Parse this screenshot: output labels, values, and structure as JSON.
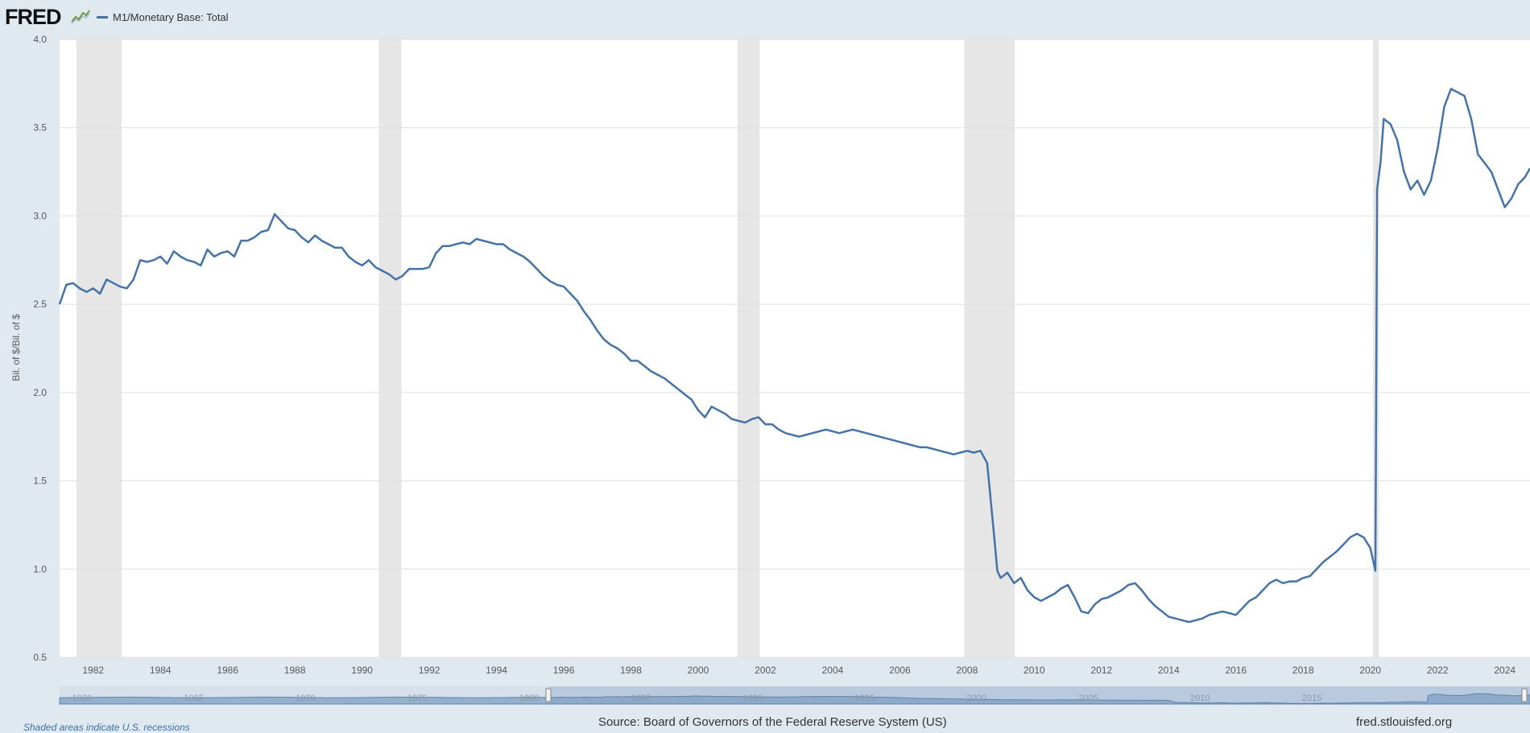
{
  "header": {
    "logo": "FRED",
    "legend_label": "M1/Monetary Base: Total"
  },
  "footer": {
    "source": "Source: Board of Governors of the Federal Reserve System (US)",
    "site": "fred.stlouisfed.org",
    "recession_note": "Shaded areas indicate U.S. recessions"
  },
  "colors": {
    "line": "#4572a7",
    "recession": "#e6e6e6",
    "plot_bg": "#ffffff",
    "page_bg": "#e1e9f0"
  },
  "chart_data": {
    "type": "line",
    "title": "",
    "xlabel": "",
    "ylabel": "Bil. of $/Bil. of $",
    "xlim": [
      1981.0,
      2024.75
    ],
    "ylim": [
      0.5,
      4.0
    ],
    "y_ticks": [
      "0.5",
      "1.0",
      "1.5",
      "2.0",
      "2.5",
      "3.0",
      "3.5",
      "4.0"
    ],
    "x_ticks": [
      "1982",
      "1984",
      "1986",
      "1988",
      "1990",
      "1992",
      "1994",
      "1996",
      "1998",
      "2000",
      "2002",
      "2004",
      "2006",
      "2008",
      "2010",
      "2012",
      "2014",
      "2016",
      "2018",
      "2020",
      "2022",
      "2024"
    ],
    "grid": "horizontal",
    "legend": "top-left",
    "recessions": [
      [
        1981.5,
        1982.85
      ],
      [
        1990.5,
        1991.17
      ],
      [
        2001.17,
        2001.83
      ],
      [
        2007.92,
        2009.42
      ],
      [
        2020.08,
        2020.25
      ]
    ],
    "navigator_labels": [
      "1960",
      "1965",
      "1970",
      "1975",
      "1980",
      "1985",
      "1990",
      "1995",
      "2000",
      "2005",
      "2010",
      "2015"
    ],
    "series": [
      {
        "name": "M1/Monetary Base: Total",
        "x": [
          1981.0,
          1981.2,
          1981.4,
          1981.6,
          1981.8,
          1982.0,
          1982.2,
          1982.4,
          1982.6,
          1982.8,
          1983.0,
          1983.2,
          1983.4,
          1983.6,
          1983.8,
          1984.0,
          1984.2,
          1984.4,
          1984.6,
          1984.8,
          1985.0,
          1985.2,
          1985.4,
          1985.6,
          1985.8,
          1986.0,
          1986.2,
          1986.4,
          1986.6,
          1986.8,
          1987.0,
          1987.2,
          1987.4,
          1987.6,
          1987.8,
          1988.0,
          1988.2,
          1988.4,
          1988.6,
          1988.8,
          1989.0,
          1989.2,
          1989.4,
          1989.6,
          1989.8,
          1990.0,
          1990.2,
          1990.4,
          1990.6,
          1990.8,
          1991.0,
          1991.2,
          1991.4,
          1991.6,
          1991.8,
          1992.0,
          1992.2,
          1992.4,
          1992.6,
          1992.8,
          1993.0,
          1993.2,
          1993.4,
          1993.6,
          1993.8,
          1994.0,
          1994.2,
          1994.4,
          1994.6,
          1994.8,
          1995.0,
          1995.2,
          1995.4,
          1995.6,
          1995.8,
          1996.0,
          1996.2,
          1996.4,
          1996.6,
          1996.8,
          1997.0,
          1997.2,
          1997.4,
          1997.6,
          1997.8,
          1998.0,
          1998.2,
          1998.4,
          1998.6,
          1998.8,
          1999.0,
          1999.2,
          1999.4,
          1999.6,
          1999.8,
          2000.0,
          2000.2,
          2000.4,
          2000.6,
          2000.8,
          2001.0,
          2001.2,
          2001.4,
          2001.6,
          2001.8,
          2002.0,
          2002.2,
          2002.4,
          2002.6,
          2002.8,
          2003.0,
          2003.2,
          2003.4,
          2003.6,
          2003.8,
          2004.0,
          2004.2,
          2004.4,
          2004.6,
          2004.8,
          2005.0,
          2005.2,
          2005.4,
          2005.6,
          2005.8,
          2006.0,
          2006.2,
          2006.4,
          2006.6,
          2006.8,
          2007.0,
          2007.2,
          2007.4,
          2007.6,
          2007.8,
          2008.0,
          2008.2,
          2008.4,
          2008.6,
          2008.8,
          2008.9,
          2009.0,
          2009.2,
          2009.4,
          2009.6,
          2009.8,
          2010.0,
          2010.2,
          2010.4,
          2010.6,
          2010.8,
          2011.0,
          2011.2,
          2011.4,
          2011.6,
          2011.8,
          2012.0,
          2012.2,
          2012.4,
          2012.6,
          2012.8,
          2013.0,
          2013.2,
          2013.4,
          2013.6,
          2013.8,
          2014.0,
          2014.2,
          2014.4,
          2014.6,
          2014.8,
          2015.0,
          2015.2,
          2015.4,
          2015.6,
          2015.8,
          2016.0,
          2016.2,
          2016.4,
          2016.6,
          2016.8,
          2017.0,
          2017.2,
          2017.4,
          2017.6,
          2017.8,
          2018.0,
          2018.2,
          2018.4,
          2018.6,
          2018.8,
          2019.0,
          2019.2,
          2019.4,
          2019.6,
          2019.8,
          2020.0,
          2020.15,
          2020.2,
          2020.3,
          2020.4,
          2020.6,
          2020.8,
          2021.0,
          2021.2,
          2021.4,
          2021.6,
          2021.8,
          2022.0,
          2022.2,
          2022.4,
          2022.6,
          2022.8,
          2023.0,
          2023.2,
          2023.4,
          2023.6,
          2023.8,
          2024.0,
          2024.2,
          2024.4,
          2024.6,
          2024.75
        ],
        "values": [
          2.5,
          2.61,
          2.62,
          2.59,
          2.57,
          2.59,
          2.56,
          2.64,
          2.62,
          2.6,
          2.59,
          2.64,
          2.75,
          2.74,
          2.75,
          2.77,
          2.73,
          2.8,
          2.77,
          2.75,
          2.74,
          2.72,
          2.81,
          2.77,
          2.79,
          2.8,
          2.77,
          2.86,
          2.86,
          2.88,
          2.91,
          2.92,
          3.01,
          2.97,
          2.93,
          2.92,
          2.88,
          2.85,
          2.89,
          2.86,
          2.84,
          2.82,
          2.82,
          2.77,
          2.74,
          2.72,
          2.75,
          2.71,
          2.69,
          2.67,
          2.64,
          2.66,
          2.7,
          2.7,
          2.7,
          2.71,
          2.79,
          2.83,
          2.83,
          2.84,
          2.85,
          2.84,
          2.87,
          2.86,
          2.85,
          2.84,
          2.84,
          2.81,
          2.79,
          2.77,
          2.74,
          2.7,
          2.66,
          2.63,
          2.61,
          2.6,
          2.56,
          2.52,
          2.46,
          2.41,
          2.35,
          2.3,
          2.27,
          2.25,
          2.22,
          2.18,
          2.18,
          2.15,
          2.12,
          2.1,
          2.08,
          2.05,
          2.02,
          1.99,
          1.96,
          1.9,
          1.86,
          1.92,
          1.9,
          1.88,
          1.85,
          1.84,
          1.83,
          1.85,
          1.86,
          1.82,
          1.82,
          1.79,
          1.77,
          1.76,
          1.75,
          1.76,
          1.77,
          1.78,
          1.79,
          1.78,
          1.77,
          1.78,
          1.79,
          1.78,
          1.77,
          1.76,
          1.75,
          1.74,
          1.73,
          1.72,
          1.71,
          1.7,
          1.69,
          1.69,
          1.68,
          1.67,
          1.66,
          1.65,
          1.66,
          1.67,
          1.66,
          1.67,
          1.6,
          1.2,
          0.99,
          0.95,
          0.98,
          0.92,
          0.95,
          0.88,
          0.84,
          0.82,
          0.84,
          0.86,
          0.89,
          0.91,
          0.84,
          0.76,
          0.75,
          0.8,
          0.83,
          0.84,
          0.86,
          0.88,
          0.91,
          0.92,
          0.88,
          0.83,
          0.79,
          0.76,
          0.73,
          0.72,
          0.71,
          0.7,
          0.71,
          0.72,
          0.74,
          0.75,
          0.76,
          0.75,
          0.74,
          0.78,
          0.82,
          0.84,
          0.88,
          0.92,
          0.94,
          0.92,
          0.93,
          0.93,
          0.95,
          0.96,
          1.0,
          1.04,
          1.07,
          1.1,
          1.14,
          1.18,
          1.2,
          1.18,
          1.12,
          0.99,
          3.15,
          3.3,
          3.55,
          3.52,
          3.43,
          3.25,
          3.15,
          3.2,
          3.12,
          3.2,
          3.38,
          3.62,
          3.72,
          3.7,
          3.68,
          3.55,
          3.35,
          3.3,
          3.25,
          3.15,
          3.05,
          3.1,
          3.18,
          3.22,
          3.27
        ]
      }
    ]
  }
}
